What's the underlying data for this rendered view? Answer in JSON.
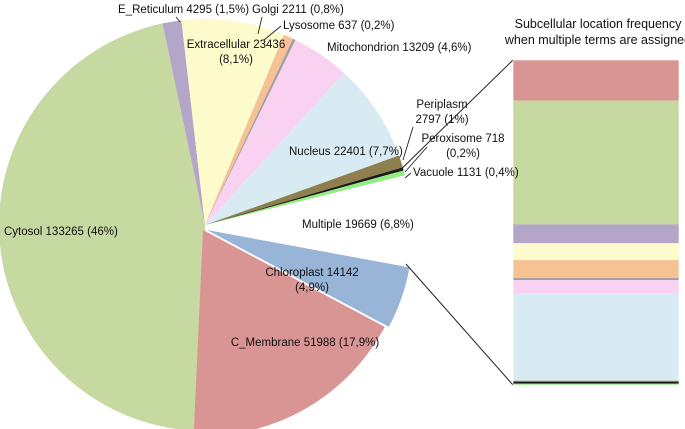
{
  "chart_data": [
    {
      "type": "pie",
      "title": "",
      "slices": [
        {
          "name": "Cytosol",
          "count": 133265,
          "percent": "46%",
          "label": "Cytosol 133265 (46%)",
          "color": "#c5d9a0"
        },
        {
          "name": "E_Reticulum",
          "count": 4295,
          "percent": "1,5%",
          "label": "E_Reticulum 4295 (1,5%)",
          "color": "#b4a6c9"
        },
        {
          "name": "Extracellular",
          "count": 23436,
          "percent": "8,1%",
          "label_lines": [
            "Extracellular 23436",
            "(8,1%)"
          ],
          "color": "#fdfbcc"
        },
        {
          "name": "Golgi",
          "count": 2211,
          "percent": "0,8%",
          "label": "Golgi 2211 (0,8%)",
          "color": "#f6c193"
        },
        {
          "name": "Lysosome",
          "count": 637,
          "percent": "0,2%",
          "label": "Lysosome 637 (0,2%)",
          "color": "#a0a0a0"
        },
        {
          "name": "Mitochondrion",
          "count": 13209,
          "percent": "4,6%",
          "label": "Mitochondrion 13209 (4,6%)",
          "color": "#f9d2f2"
        },
        {
          "name": "Nucleus",
          "count": 22401,
          "percent": "7,7%",
          "label": "Nucleus 22401 (7,7%)",
          "color": "#d9ebf2"
        },
        {
          "name": "Periplasm",
          "count": 2797,
          "percent": "1%",
          "label_lines": [
            "Periplasm",
            "2797 (1%)"
          ],
          "color": "#8f7f4f"
        },
        {
          "name": "Peroxisome",
          "count": 718,
          "percent": "0,2%",
          "label_lines": [
            "Peroxisome 718",
            "(0,2%)"
          ],
          "color": "#1a1a1a"
        },
        {
          "name": "Vacuole",
          "count": 1131,
          "percent": "0,4%",
          "label": "Vacuole 1131 (0,4%)",
          "color": "#90ee80"
        },
        {
          "name": "Multiple",
          "count": 19669,
          "percent": "6,8%",
          "label": "Multiple 19669 (6,8%)",
          "color": "#ffffff"
        },
        {
          "name": "Chloroplast",
          "count": 14142,
          "percent": "4,9%",
          "label_lines": [
            "Chloroplast 14142",
            "(4,9%)"
          ],
          "color": "#98b4d6"
        },
        {
          "name": "C_Membrane",
          "count": 51988,
          "percent": "17,9%",
          "label": "C_Membrane 51988 (17,9%)",
          "color": "#d99593"
        }
      ]
    },
    {
      "type": "bar",
      "orientation": "stacked-vertical",
      "title_lines": [
        "Subcellular location frequency",
        "when multiple terms are assigned"
      ],
      "segments": [
        {
          "name": "C_Membrane",
          "share": 0.125,
          "color": "#d99593"
        },
        {
          "name": "Cytosol",
          "share": 0.381,
          "color": "#c5d9a0"
        },
        {
          "name": "E_Reticulum",
          "share": 0.058,
          "color": "#b4a6c9"
        },
        {
          "name": "Extracellular",
          "share": 0.052,
          "color": "#fdfbcc"
        },
        {
          "name": "Golgi",
          "share": 0.055,
          "color": "#f6c193"
        },
        {
          "name": "Lysosome",
          "share": 0.006,
          "color": "#a0a0a0"
        },
        {
          "name": "Mitochondrion",
          "share": 0.04,
          "color": "#f9d2f2"
        },
        {
          "name": "Nucleus",
          "share": 0.27,
          "color": "#d9ebf2"
        },
        {
          "name": "Periplasm",
          "share": 0.003,
          "color": "#8f7f4f"
        },
        {
          "name": "Peroxisome",
          "share": 0.006,
          "color": "#1a1a1a"
        },
        {
          "name": "Vacuole",
          "share": 0.004,
          "color": "#90ee80"
        }
      ]
    }
  ]
}
